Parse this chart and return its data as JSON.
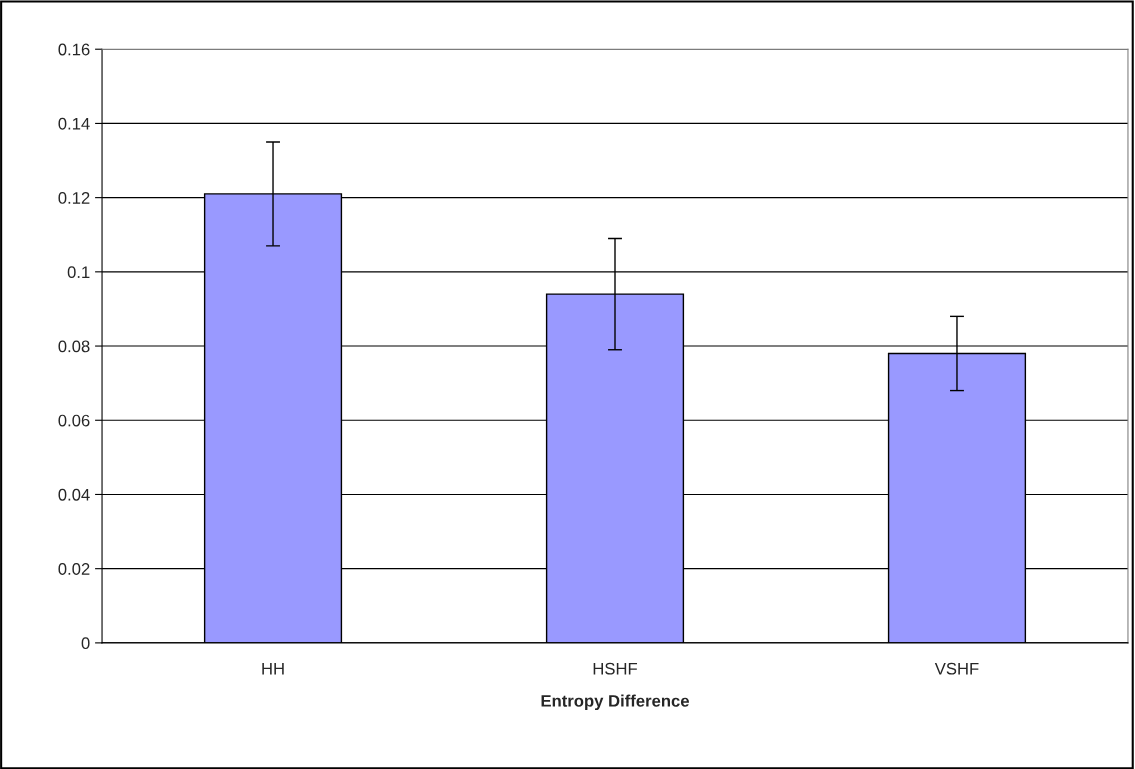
{
  "chart_data": {
    "type": "bar",
    "xlabel": "Entropy Difference",
    "categories": [
      "HH",
      "HSHF",
      "VSHF"
    ],
    "values": [
      0.121,
      0.094,
      0.078
    ],
    "errors": [
      0.014,
      0.015,
      0.01
    ],
    "color": "#9999ff",
    "ylim": [
      0,
      0.16
    ],
    "yticks": [
      {
        "value": 0,
        "label": "0"
      },
      0.02,
      0.04,
      0.06,
      0.08,
      {
        "value": 0.1,
        "label": "0.1"
      },
      0.12,
      0.14,
      0.16
    ],
    "grid": "y"
  }
}
